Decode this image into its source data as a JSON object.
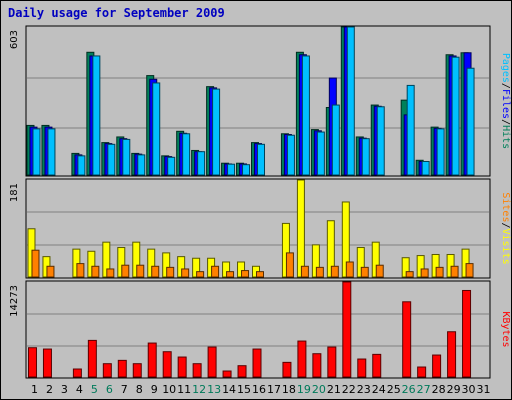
{
  "title": "Daily usage for September 2009",
  "colors": {
    "pages": "#00c0ff",
    "files": "#0000ff",
    "hits": "#00805a",
    "sites": "#ff8000",
    "visits": "#ffff00",
    "kbytes": "#ff0000",
    "weekend_label": "#007a5a",
    "background": "#c0c0c0",
    "grid": "#808080"
  },
  "chart_data": [
    {
      "type": "bar",
      "title": "Daily usage for September 2009",
      "ymax_label": "603",
      "ylim": [
        0,
        603
      ],
      "legend": [
        "Pages",
        "/",
        "Files",
        "/",
        "Hits"
      ],
      "categories": [
        "1",
        "2",
        "3",
        "4",
        "5",
        "6",
        "7",
        "8",
        "9",
        "10",
        "11",
        "12",
        "13",
        "14",
        "15",
        "16",
        "17",
        "18",
        "19",
        "20",
        "21",
        "22",
        "23",
        "24",
        "25",
        "26",
        "27",
        "28",
        "29",
        "30",
        "31"
      ],
      "series": [
        {
          "name": "Hits",
          "values": [
            202,
            202,
            null,
            88,
            500,
            132,
            155,
            88,
            405,
            78,
            178,
            100,
            360,
            48,
            48,
            132,
            null,
            168,
            500,
            185,
            275,
            603,
            155,
            285,
            null,
            305,
            60,
            195,
            490,
            498,
            null
          ]
        },
        {
          "name": "Files",
          "values": [
            195,
            195,
            null,
            82,
            485,
            128,
            148,
            85,
            390,
            75,
            170,
            95,
            355,
            45,
            45,
            128,
            null,
            165,
            490,
            180,
            395,
            603,
            150,
            280,
            null,
            245,
            55,
            190,
            485,
            498,
            null
          ]
        },
        {
          "name": "Pages",
          "values": [
            188,
            188,
            null,
            78,
            485,
            125,
            145,
            82,
            375,
            72,
            168,
            95,
            350,
            44,
            42,
            125,
            null,
            162,
            485,
            175,
            285,
            603,
            148,
            278,
            null,
            365,
            55,
            188,
            480,
            435,
            null
          ]
        }
      ]
    },
    {
      "type": "bar",
      "ymax_label": "181",
      "ylim": [
        0,
        181
      ],
      "legend": [
        "Sites",
        "/",
        "Visits"
      ],
      "categories": [
        "1",
        "2",
        "3",
        "4",
        "5",
        "6",
        "7",
        "8",
        "9",
        "10",
        "11",
        "12",
        "13",
        "14",
        "15",
        "16",
        "17",
        "18",
        "19",
        "20",
        "21",
        "22",
        "23",
        "24",
        "25",
        "26",
        "27",
        "28",
        "29",
        "30",
        "31"
      ],
      "series": [
        {
          "name": "Visits",
          "values": [
            90,
            38,
            null,
            52,
            48,
            65,
            55,
            65,
            52,
            45,
            38,
            35,
            35,
            28,
            28,
            20,
            null,
            100,
            181,
            60,
            105,
            140,
            55,
            65,
            null,
            36,
            40,
            42,
            42,
            52,
            null
          ]
        },
        {
          "name": "Sites",
          "values": [
            50,
            20,
            null,
            25,
            20,
            15,
            22,
            22,
            20,
            18,
            15,
            10,
            20,
            10,
            12,
            10,
            null,
            45,
            20,
            18,
            20,
            28,
            18,
            22,
            null,
            10,
            15,
            18,
            20,
            25,
            null
          ]
        }
      ]
    },
    {
      "type": "bar",
      "ymax_label": "14273",
      "ylim": [
        0,
        14273
      ],
      "legend": [
        "KBytes"
      ],
      "categories": [
        "1",
        "2",
        "3",
        "4",
        "5",
        "6",
        "7",
        "8",
        "9",
        "10",
        "11",
        "12",
        "13",
        "14",
        "15",
        "16",
        "17",
        "18",
        "19",
        "20",
        "21",
        "22",
        "23",
        "24",
        "25",
        "26",
        "27",
        "28",
        "29",
        "30",
        "31"
      ],
      "series": [
        {
          "name": "KBytes",
          "values": [
            4400,
            4200,
            null,
            1200,
            5500,
            2000,
            2500,
            2000,
            5100,
            3800,
            3000,
            2000,
            4500,
            900,
            1700,
            4200,
            null,
            2200,
            5400,
            3500,
            4500,
            14273,
            2700,
            3400,
            null,
            11300,
            1500,
            3300,
            6800,
            13000,
            null
          ]
        }
      ]
    }
  ],
  "x_labels": [
    "1",
    "2",
    "3",
    "4",
    "5",
    "6",
    "7",
    "8",
    "9",
    "10",
    "11",
    "12",
    "13",
    "14",
    "15",
    "16",
    "17",
    "18",
    "19",
    "20",
    "21",
    "22",
    "23",
    "24",
    "25",
    "26",
    "27",
    "28",
    "29",
    "30",
    "31"
  ],
  "weekend_days": [
    "5",
    "6",
    "12",
    "13",
    "19",
    "20",
    "26",
    "27"
  ]
}
